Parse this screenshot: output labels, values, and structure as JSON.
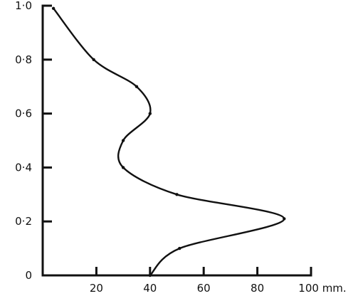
{
  "chart_data": {
    "type": "line",
    "title": "",
    "xlabel": "",
    "ylabel": "",
    "xlim": [
      0,
      100
    ],
    "ylim": [
      0,
      1.0
    ],
    "x_tick_values": [
      20,
      40,
      60,
      80,
      100
    ],
    "x_tick_labels": [
      "20",
      "40",
      "60",
      "80",
      "100 mm."
    ],
    "y_tick_values": [
      0,
      0.2,
      0.4,
      0.6,
      0.8,
      1.0
    ],
    "y_tick_labels": [
      "0",
      "0·2",
      "0·4",
      "0·6",
      "0·8",
      "1·0"
    ],
    "grid": false,
    "legend": "none",
    "series": [
      {
        "x": [
          40,
          51,
          90,
          50,
          30,
          30,
          40,
          35,
          19,
          4
        ],
        "y": [
          0,
          0.1,
          0.21,
          0.3,
          0.4,
          0.5,
          0.6,
          0.7,
          0.8,
          0.99
        ]
      }
    ]
  }
}
